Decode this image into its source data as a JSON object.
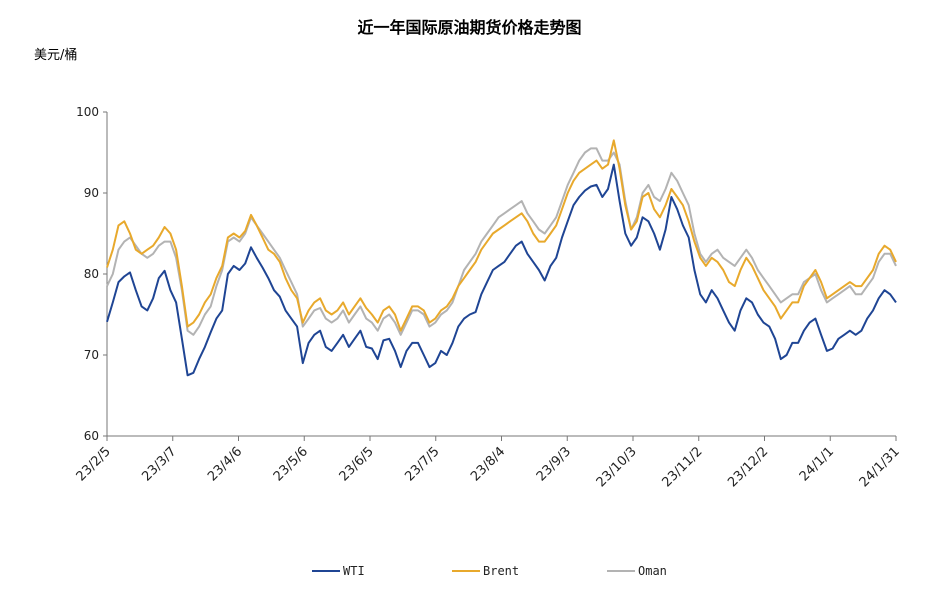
{
  "chart_data": {
    "type": "line",
    "title": "近一年国际原油期货价格走势图",
    "ylabel": "美元/桶",
    "xlabel": "",
    "ylim": [
      60,
      100
    ],
    "yticks": [
      60,
      70,
      80,
      90,
      100
    ],
    "xticks": [
      "23/2/5",
      "23/3/7",
      "23/4/6",
      "23/5/6",
      "23/6/5",
      "23/7/5",
      "23/8/4",
      "23/9/3",
      "23/10/3",
      "23/11/2",
      "23/12/2",
      "24/1/1",
      "24/1/31"
    ],
    "grid": false,
    "legend_position": "bottom",
    "series": [
      {
        "name": "WTI",
        "color": "#1f4594",
        "values": [
          74.1,
          76.5,
          79.0,
          79.7,
          80.2,
          78.0,
          76.0,
          75.5,
          77.0,
          79.5,
          80.4,
          78.0,
          76.5,
          72.0,
          67.5,
          67.8,
          69.5,
          71.0,
          72.8,
          74.5,
          75.5,
          80.0,
          81.0,
          80.5,
          81.3,
          83.3,
          82.0,
          80.8,
          79.5,
          78.0,
          77.2,
          75.5,
          74.5,
          73.5,
          69.0,
          71.5,
          72.5,
          73.0,
          71.0,
          70.5,
          71.5,
          72.5,
          71.0,
          72.0,
          73.0,
          71.0,
          70.8,
          69.5,
          71.8,
          72.0,
          70.5,
          68.5,
          70.5,
          71.5,
          71.5,
          70.0,
          68.5,
          69.0,
          70.5,
          70.0,
          71.5,
          73.5,
          74.5,
          75.0,
          75.3,
          77.5,
          79.0,
          80.5,
          81.0,
          81.5,
          82.5,
          83.5,
          84.0,
          82.5,
          81.5,
          80.5,
          79.2,
          81.0,
          82.0,
          84.5,
          86.5,
          88.5,
          89.5,
          90.3,
          90.8,
          91.0,
          89.5,
          90.5,
          93.5,
          89.0,
          85.0,
          83.5,
          84.5,
          87.0,
          86.5,
          85.0,
          83.0,
          85.5,
          89.5,
          88.0,
          86.0,
          84.5,
          80.5,
          77.5,
          76.5,
          78.0,
          77.0,
          75.5,
          74.0,
          73.0,
          75.5,
          77.0,
          76.5,
          75.0,
          74.0,
          73.5,
          72.0,
          69.5,
          70.0,
          71.5,
          71.5,
          73.0,
          74.0,
          74.5,
          72.5,
          70.5,
          70.8,
          72.0,
          72.5,
          73.0,
          72.5,
          73.0,
          74.5,
          75.5,
          77.0,
          78.0,
          77.5,
          76.5
        ]
      },
      {
        "name": "Brent",
        "color": "#e8a92c",
        "values": [
          80.8,
          83.0,
          86.0,
          86.5,
          85.0,
          83.0,
          82.5,
          83.0,
          83.5,
          84.5,
          85.8,
          85.0,
          83.0,
          78.5,
          73.5,
          74.0,
          75.0,
          76.5,
          77.5,
          79.5,
          81.0,
          84.5,
          85.0,
          84.5,
          85.3,
          87.3,
          86.0,
          84.5,
          83.0,
          82.5,
          81.5,
          79.5,
          78.0,
          77.0,
          74.0,
          75.5,
          76.5,
          77.0,
          75.5,
          75.0,
          75.5,
          76.5,
          75.0,
          76.0,
          77.0,
          75.8,
          75.0,
          74.0,
          75.5,
          76.0,
          75.0,
          73.0,
          74.5,
          76.0,
          76.0,
          75.5,
          74.0,
          74.5,
          75.5,
          76.0,
          77.0,
          78.5,
          79.5,
          80.5,
          81.5,
          83.0,
          84.0,
          85.0,
          85.5,
          86.0,
          86.5,
          87.0,
          87.5,
          86.5,
          85.0,
          84.0,
          84.0,
          85.0,
          86.0,
          88.0,
          90.0,
          91.5,
          92.5,
          93.0,
          93.5,
          94.0,
          93.0,
          93.5,
          96.5,
          93.0,
          88.5,
          85.5,
          86.5,
          89.5,
          90.0,
          88.0,
          87.0,
          88.5,
          90.5,
          89.5,
          88.5,
          86.5,
          84.0,
          82.0,
          81.0,
          82.0,
          81.5,
          80.5,
          79.0,
          78.5,
          80.5,
          82.0,
          81.0,
          79.5,
          78.0,
          77.0,
          76.0,
          74.5,
          75.5,
          76.5,
          76.5,
          78.5,
          79.5,
          80.5,
          79.0,
          77.0,
          77.5,
          78.0,
          78.5,
          79.0,
          78.5,
          78.5,
          79.5,
          80.5,
          82.5,
          83.5,
          83.0,
          81.5
        ]
      },
      {
        "name": "Oman",
        "color": "#b3b3b3",
        "values": [
          78.5,
          80.0,
          83.0,
          84.0,
          84.5,
          83.5,
          82.5,
          82.0,
          82.5,
          83.5,
          84.0,
          84.0,
          82.0,
          78.0,
          73.0,
          72.5,
          73.5,
          75.0,
          76.0,
          78.5,
          80.5,
          84.0,
          84.5,
          84.0,
          85.0,
          87.0,
          86.0,
          85.0,
          84.0,
          83.0,
          82.0,
          80.5,
          79.0,
          77.5,
          73.5,
          74.5,
          75.5,
          75.8,
          74.5,
          74.0,
          74.5,
          75.5,
          74.0,
          75.0,
          76.0,
          74.5,
          74.0,
          73.0,
          74.5,
          75.0,
          74.0,
          72.5,
          74.0,
          75.5,
          75.5,
          75.0,
          73.5,
          74.0,
          75.0,
          75.5,
          76.5,
          78.5,
          80.5,
          81.5,
          82.5,
          84.0,
          85.0,
          86.0,
          87.0,
          87.5,
          88.0,
          88.5,
          89.0,
          87.5,
          86.5,
          85.5,
          85.0,
          86.0,
          87.0,
          89.0,
          91.0,
          92.5,
          94.0,
          95.0,
          95.5,
          95.5,
          94.0,
          94.0,
          95.0,
          93.5,
          89.0,
          85.5,
          87.0,
          90.0,
          91.0,
          89.5,
          89.0,
          90.5,
          92.5,
          91.5,
          90.0,
          88.5,
          85.0,
          82.5,
          81.5,
          82.5,
          83.0,
          82.0,
          81.5,
          81.0,
          82.0,
          83.0,
          82.0,
          80.5,
          79.5,
          78.5,
          77.5,
          76.5,
          77.0,
          77.5,
          77.5,
          79.0,
          79.5,
          80.0,
          78.0,
          76.5,
          77.0,
          77.5,
          78.0,
          78.5,
          77.5,
          77.5,
          78.5,
          79.5,
          81.5,
          82.5,
          82.5,
          81.0
        ]
      }
    ]
  }
}
